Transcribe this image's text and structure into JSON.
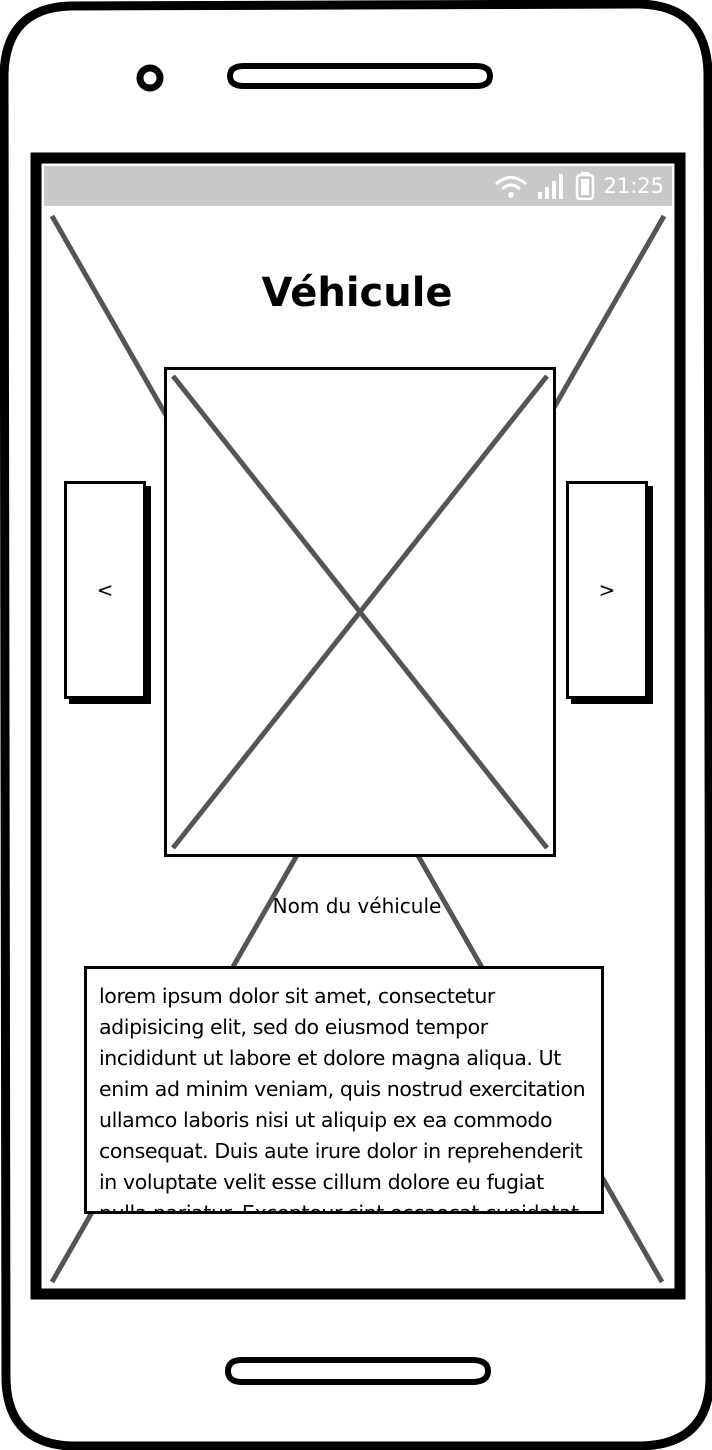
{
  "status_bar": {
    "time": "21:25",
    "wifi_icon": "wifi-icon",
    "signal_icon": "signal-icon",
    "battery_icon": "battery-icon"
  },
  "page": {
    "title": "Véhicule"
  },
  "carousel": {
    "prev_label": "<",
    "next_label": ">",
    "image_icon": "image-placeholder-icon"
  },
  "vehicle": {
    "name": "Nom du véhicule",
    "description": "lorem ipsum dolor sit amet, consectetur adipisicing elit, sed do eiusmod tempor incididunt ut labore et dolore magna aliqua. Ut enim ad minim veniam, quis nostrud exercitation ullamco laboris nisi ut aliquip ex ea commodo consequat. Duis aute irure dolor in reprehenderit in voluptate velit esse cillum dolore eu fugiat nulla pariatur. Excepteur sint occaecat cupidatat non proident, sunt in culpa qui officia deserunt mollit anim id est laborum."
  },
  "colors": {
    "status_bar": "#c9c9c9",
    "outline": "#000000",
    "placeholder_lines": "#555555"
  }
}
